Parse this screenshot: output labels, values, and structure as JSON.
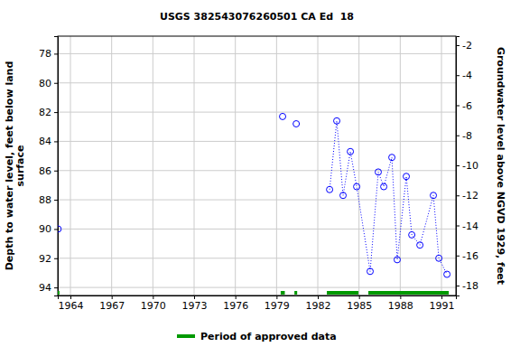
{
  "chart_data": {
    "type": "line",
    "title": "USGS 382543076260501 CA Ed  18",
    "y_label": [
      "Depth to water level, feet below land",
      "surface"
    ],
    "y2_label": "Groundwater level above NGVD 1929, feet",
    "xlim": [
      1963.08,
      1992.05
    ],
    "xticks": [
      1964,
      1967,
      1970,
      1973,
      1976,
      1979,
      1982,
      1985,
      1988,
      1991
    ],
    "ylim": [
      76.8,
      94.55
    ],
    "yticks": [
      78,
      80,
      82,
      84,
      86,
      88,
      90,
      92,
      94
    ],
    "y2lim": [
      -18.66,
      -1.4
    ],
    "y2ticks": [
      -18,
      -16,
      -14,
      -12,
      -10,
      -8,
      -6,
      -4,
      -2
    ],
    "grid": true,
    "series": [
      {
        "color": "#0000ff",
        "marker": "circle",
        "line_style": "dotted",
        "x": [
          1963.1,
          1971,
          1979.44,
          1980,
          1980.43,
          1981.5,
          1982.86,
          1983.38,
          1983.84,
          1984.37,
          1984.83,
          1985.81,
          1986.4,
          1986.8,
          1987.39,
          1987.78,
          1988.44,
          1988.84,
          1989.43,
          1990.41,
          1990.81,
          1991.4
        ],
        "values": [
          90.0,
          null,
          82.3,
          null,
          82.8,
          null,
          87.3,
          82.6,
          87.7,
          84.7,
          87.1,
          92.9,
          86.1,
          87.1,
          85.1,
          92.1,
          86.4,
          90.4,
          91.1,
          87.7,
          92.0,
          93.1
        ]
      }
    ],
    "approved_periods": {
      "name": "Period of approved data",
      "color": "#009900",
      "ranges": [
        [
          1963.0,
          1963.2
        ],
        [
          1979.3,
          1979.6
        ],
        [
          1980.3,
          1980.5
        ],
        [
          1982.66,
          1984.96
        ],
        [
          1985.68,
          1991.53
        ]
      ]
    }
  }
}
